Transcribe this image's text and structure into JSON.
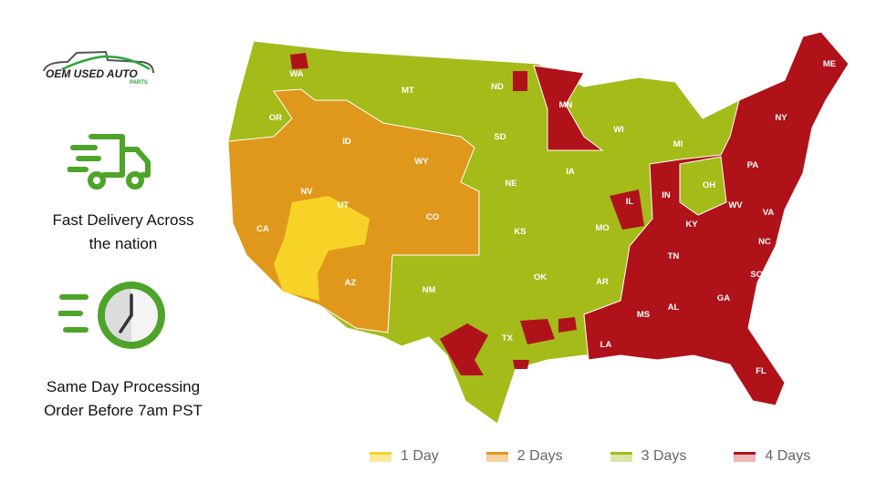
{
  "logo": {
    "text": "OEM USED AUTO",
    "sub": "PARTS"
  },
  "features": [
    {
      "icon": "delivery-truck-icon",
      "line1": "Fast Delivery Across",
      "line2": "the nation"
    },
    {
      "icon": "clock-icon",
      "line1": "Same Day Processing",
      "line2": "Order Before 7am PST"
    }
  ],
  "colors": {
    "1 Day": "#f7d327",
    "2 Days": "#e0981c",
    "3 Days": "#a4bb1a",
    "4 Days": "#b0121a"
  },
  "legend": [
    {
      "label": "1 Day",
      "color": "#f7d327",
      "light": "#fbe99a"
    },
    {
      "label": "2 Days",
      "color": "#e0981c",
      "light": "#f3d2a0"
    },
    {
      "label": "3 Days",
      "color": "#a4bb1a",
      "light": "#dbe6a6"
    },
    {
      "label": "4 Days",
      "color": "#b0121a",
      "light": "#eab6b8"
    }
  ],
  "states": {
    "WA": "3 Days",
    "OR": "3 Days",
    "CA": "2 Days",
    "NV": "2 Days",
    "ID": "2 Days",
    "MT": "3 Days",
    "WY": "2 Days",
    "UT": "2 Days",
    "AZ": "2 Days",
    "CO": "2 Days",
    "NM": "3 Days",
    "ND": "3 Days",
    "SD": "3 Days",
    "NE": "3 Days",
    "KS": "3 Days",
    "OK": "3 Days",
    "TX": "3 Days",
    "MN": "4 Days",
    "IA": "3 Days",
    "MO": "3 Days",
    "AR": "3 Days",
    "LA": "4 Days",
    "WI": "3 Days",
    "IL": "3 Days",
    "MI": "3 Days",
    "IN": "4 Days",
    "OH": "3 Days",
    "KY": "4 Days",
    "TN": "4 Days",
    "MS": "4 Days",
    "AL": "4 Days",
    "GA": "4 Days",
    "FL": "4 Days",
    "SC": "4 Days",
    "NC": "4 Days",
    "VA": "4 Days",
    "WV": "4 Days",
    "PA": "4 Days",
    "NY": "4 Days",
    "ME": "4 Days"
  }
}
